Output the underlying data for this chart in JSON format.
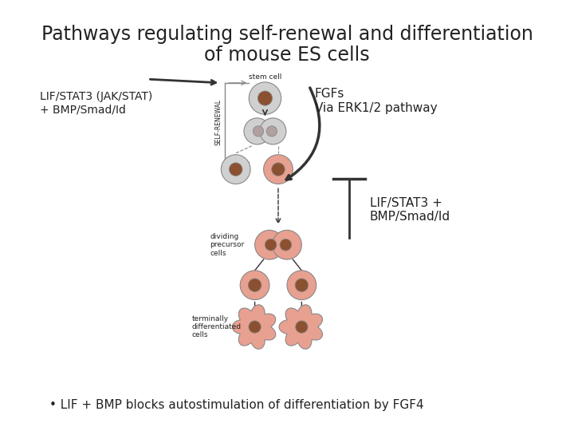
{
  "title_line1": "Pathways regulating self-renewal and differentiation",
  "title_line2": "of mouse ES cells",
  "title_fontsize": 17,
  "background_color": "#ffffff",
  "label_lif_bmp": "LIF/STAT3 (JAK/STAT)\n+ BMP/Smad/Id",
  "label_fgfs": "FGFs\nVia ERK1/2 pathway",
  "label_lif_stat3": "LIF/STAT3 +\nBMP/Smad/Id",
  "label_bullet": "LIF + BMP blocks autostimulation of differentiation by FGF4",
  "label_stem_cell": "stem cell",
  "label_self_renewal": "SELF-RENEWAL",
  "label_dividing": "dividing\nprecursor\ncells",
  "label_terminal": "terminally\ndifferentiated\ncells",
  "cell_gray_color": "#d0d0d0",
  "cell_pink_color": "#e8a090",
  "nucleus_brown": "#8B5030",
  "nucleus_gray": "#999999",
  "nucleus_gray2": "#b0a0a0",
  "outline_color": "#888888",
  "arrow_color": "#333333",
  "text_color": "#222222",
  "figsize": [
    7.2,
    5.4
  ],
  "dpi": 100
}
